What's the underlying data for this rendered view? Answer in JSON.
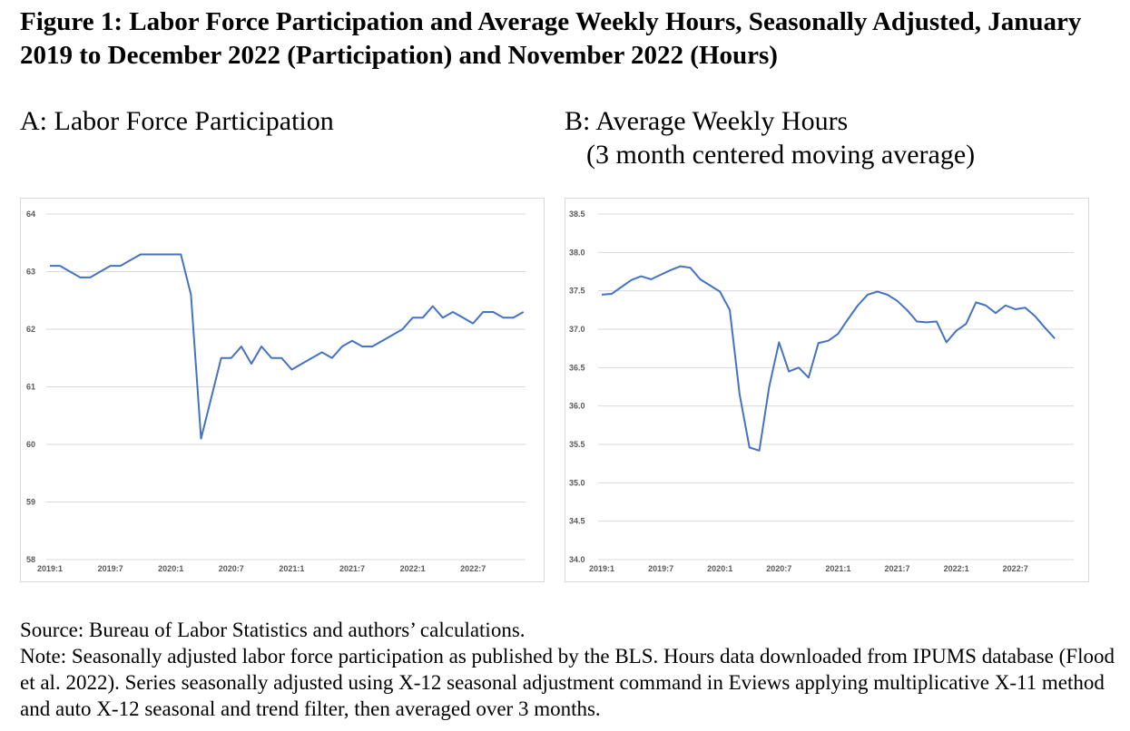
{
  "figure": {
    "title": "Figure 1: Labor Force Participation and Average Weekly Hours, Seasonally Adjusted, January 2019 to December 2022 (Participation) and November 2022 (Hours)",
    "source": "Source: Bureau of Labor Statistics and authors’ calculations.",
    "note": "Note: Seasonally adjusted labor force participation as published by the BLS. Hours data downloaded from IPUMS database (Flood et al. 2022). Series seasonally adjusted using X-12 seasonal adjustment command in Eviews applying multiplicative X-11 method and auto X-12 seasonal and trend filter, then averaged over 3 months."
  },
  "chart_data": [
    {
      "type": "line",
      "title_line1": "A: Labor Force Participation",
      "title_line2": "",
      "x_tick_labels": [
        "2019:1",
        "2019:7",
        "2020:1",
        "2020:7",
        "2021:1",
        "2021:7",
        "2022:1",
        "2022:7"
      ],
      "y_tick_labels": [
        "58",
        "59",
        "60",
        "61",
        "62",
        "63",
        "64"
      ],
      "ylim": [
        58,
        64
      ],
      "grid": true,
      "series": [
        {
          "color": "#4472c4",
          "start": "2019:1",
          "values": [
            63.1,
            63.1,
            63.0,
            62.9,
            62.9,
            63.0,
            63.1,
            63.1,
            63.2,
            63.3,
            63.3,
            63.3,
            63.3,
            63.3,
            62.6,
            60.1,
            60.8,
            61.5,
            61.5,
            61.7,
            61.4,
            61.7,
            61.5,
            61.5,
            61.3,
            61.4,
            61.5,
            61.6,
            61.5,
            61.7,
            61.8,
            61.7,
            61.7,
            61.8,
            61.9,
            62.0,
            62.2,
            62.2,
            62.4,
            62.2,
            62.3,
            62.2,
            62.1,
            62.3,
            62.3,
            62.2,
            62.2,
            62.3
          ]
        }
      ]
    },
    {
      "type": "line",
      "title_line1": "B: Average Weekly Hours",
      "title_line2": "(3 month centered moving average)",
      "x_tick_labels": [
        "2019:1",
        "2019:7",
        "2020:1",
        "2020:7",
        "2021:1",
        "2021:7",
        "2022:1",
        "2022:7"
      ],
      "y_tick_labels": [
        "34.0",
        "34.5",
        "35.0",
        "35.5",
        "36.0",
        "36.5",
        "37.0",
        "37.5",
        "38.0",
        "38.5"
      ],
      "ylim": [
        34.0,
        38.5
      ],
      "grid": true,
      "series": [
        {
          "color": "#4472c4",
          "start": "2019:1",
          "values": [
            37.45,
            37.46,
            37.55,
            37.64,
            37.69,
            37.65,
            37.71,
            37.77,
            37.82,
            37.8,
            37.65,
            37.57,
            37.49,
            37.25,
            36.15,
            35.46,
            35.42,
            36.25,
            36.83,
            36.45,
            36.5,
            36.37,
            36.82,
            36.85,
            36.94,
            37.13,
            37.31,
            37.45,
            37.49,
            37.45,
            37.37,
            37.25,
            37.1,
            37.09,
            37.1,
            36.83,
            36.98,
            37.07,
            37.35,
            37.31,
            37.21,
            37.31,
            37.26,
            37.28,
            37.17,
            37.02,
            36.88
          ]
        }
      ]
    }
  ]
}
